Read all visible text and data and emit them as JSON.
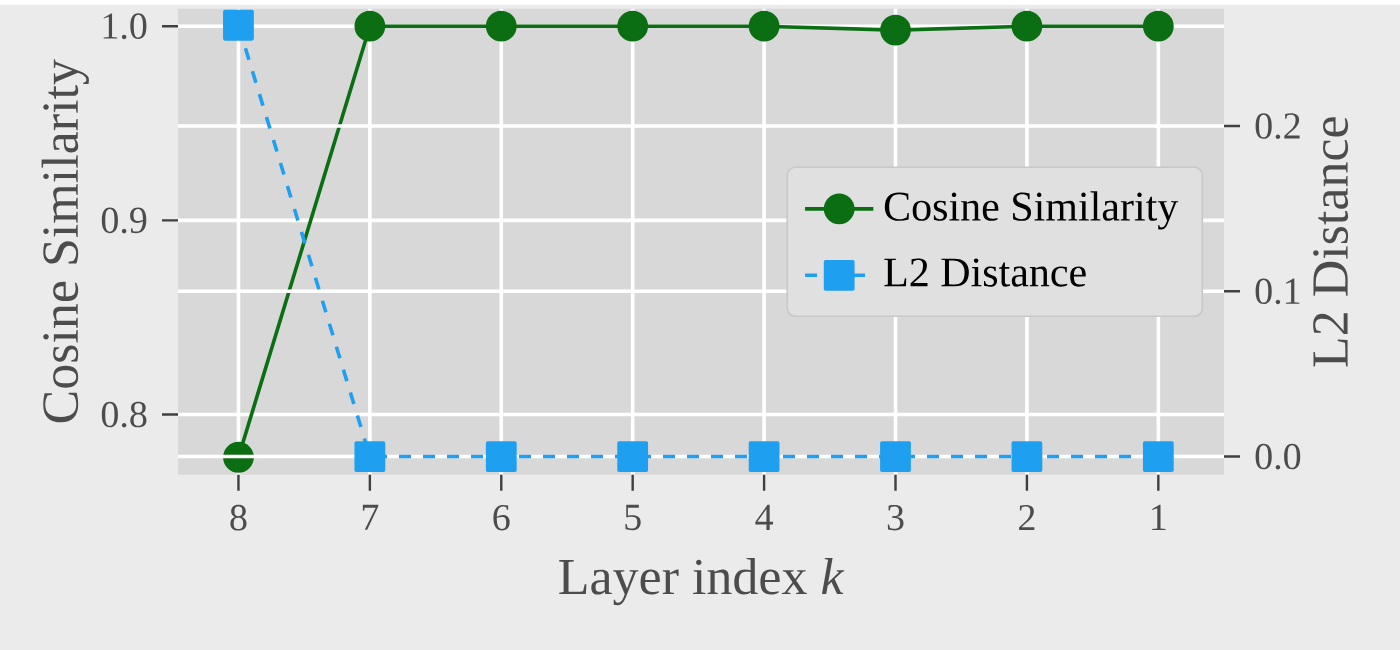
{
  "chart_data": {
    "type": "line",
    "xlabel": "Layer index *k*",
    "ylabel": "Cosine Similarity",
    "y2label": "L2 Distance",
    "categories": [
      "8",
      "7",
      "6",
      "5",
      "4",
      "3",
      "2",
      "1"
    ],
    "series": [
      {
        "name": "Cosine Similarity",
        "color": "#0b6e12",
        "marker": "circle",
        "line_style": "solid",
        "values": [
          0.778,
          1.0,
          1.0,
          1.0,
          1.0,
          0.998,
          1.0,
          1.0
        ]
      },
      {
        "name": "L2 Distance",
        "color": "#1e9ff0",
        "marker": "square",
        "line_style": "dashed",
        "axis": "y2",
        "values": [
          0.261,
          0.0,
          0.0,
          0.0,
          0.0,
          0.0,
          0.0,
          0.0
        ]
      }
    ],
    "ylim": [
      0.769,
      1.009
    ],
    "yticks": [
      0.8,
      0.9,
      {
        "value": 1,
        "label": "1.0"
      }
    ],
    "y2lim": [
      -0.011,
      0.271
    ],
    "y2ticks": [
      {
        "value": 0,
        "label": "0.0"
      },
      0.1,
      0.2
    ],
    "grid": true,
    "legend": "right"
  }
}
